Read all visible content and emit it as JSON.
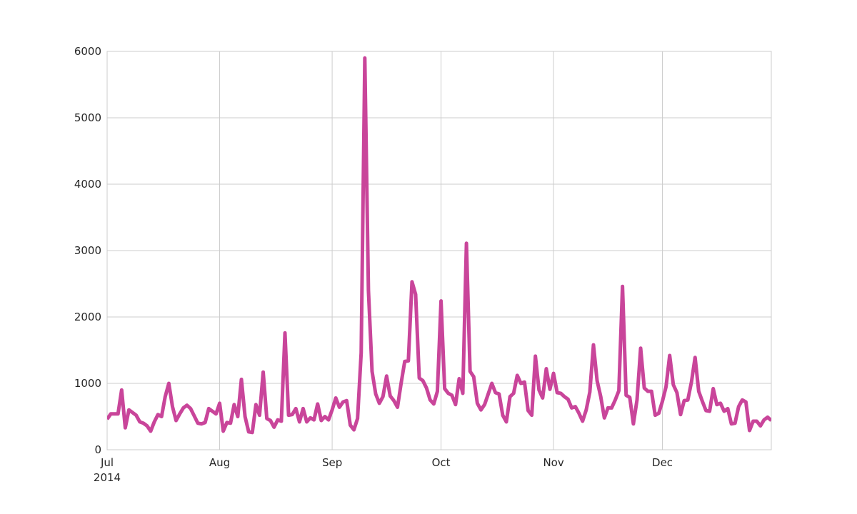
{
  "chart_data": {
    "type": "line",
    "title": "",
    "xlabel": "",
    "ylabel": "",
    "x_start": "2014-07-01",
    "x_end": "2014-12-31",
    "ylim": [
      0,
      6000
    ],
    "yticks": [
      0,
      1000,
      2000,
      3000,
      4000,
      5000,
      6000
    ],
    "xticks": [
      {
        "date": "2014-07-01",
        "label": "Jul",
        "sublabel": "2014"
      },
      {
        "date": "2014-08-01",
        "label": "Aug",
        "sublabel": ""
      },
      {
        "date": "2014-09-01",
        "label": "Sep",
        "sublabel": ""
      },
      {
        "date": "2014-10-01",
        "label": "Oct",
        "sublabel": ""
      },
      {
        "date": "2014-11-01",
        "label": "Nov",
        "sublabel": ""
      },
      {
        "date": "2014-12-01",
        "label": "Dec",
        "sublabel": ""
      }
    ],
    "grid": true,
    "line_color": "#c9459a",
    "series": [
      {
        "values": [
          460,
          540,
          540,
          540,
          900,
          330,
          600,
          560,
          520,
          420,
          400,
          360,
          280,
          420,
          530,
          500,
          800,
          1000,
          650,
          440,
          540,
          630,
          670,
          620,
          510,
          400,
          390,
          410,
          620,
          580,
          540,
          700,
          280,
          410,
          400,
          680,
          500,
          1060,
          500,
          270,
          260,
          680,
          520,
          1170,
          470,
          440,
          340,
          450,
          430,
          1760,
          520,
          530,
          620,
          420,
          620,
          420,
          480,
          450,
          690,
          440,
          500,
          450,
          600,
          780,
          640,
          720,
          740,
          370,
          300,
          470,
          1460,
          5900,
          2400,
          1180,
          840,
          700,
          800,
          1110,
          810,
          740,
          640,
          1000,
          1330,
          1340,
          2530,
          2340,
          1080,
          1040,
          930,
          750,
          690,
          880,
          2240,
          920,
          850,
          820,
          680,
          1070,
          850,
          3110,
          1180,
          1100,
          700,
          600,
          680,
          840,
          1000,
          860,
          840,
          520,
          420,
          800,
          850,
          1120,
          1000,
          1020,
          590,
          520,
          1410,
          900,
          780,
          1220,
          910,
          1150,
          860,
          850,
          800,
          760,
          630,
          650,
          550,
          430,
          600,
          870,
          1580,
          1040,
          800,
          480,
          630,
          630,
          750,
          890,
          2460,
          820,
          790,
          390,
          750,
          1530,
          930,
          880,
          880,
          520,
          550,
          730,
          950,
          1420,
          980,
          860,
          530,
          740,
          750,
          1020,
          1390,
          880,
          730,
          590,
          580,
          920,
          680,
          700,
          580,
          620,
          390,
          400,
          650,
          750,
          720,
          290,
          430,
          430,
          360,
          450,
          490,
          440
        ]
      }
    ]
  }
}
